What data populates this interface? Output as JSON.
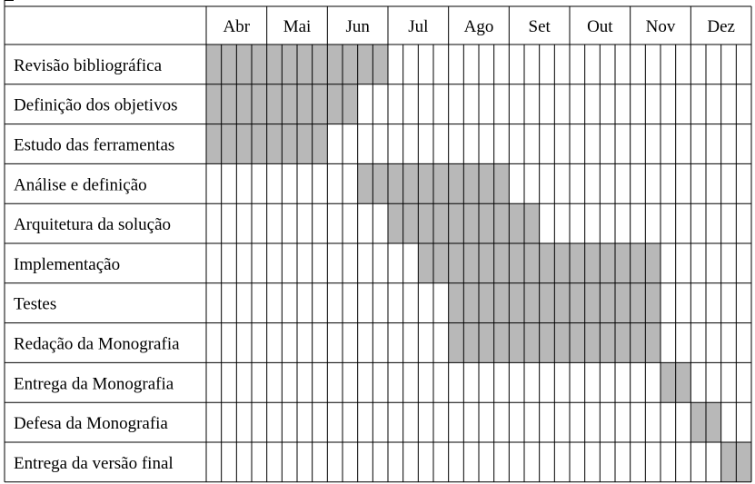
{
  "chart_data": {
    "type": "table",
    "months": [
      "Abr",
      "Mai",
      "Jun",
      "Jul",
      "Ago",
      "Set",
      "Out",
      "Nov",
      "Dez"
    ],
    "weeks_per_month": [
      4,
      4,
      4,
      4,
      4,
      4,
      4,
      4,
      4
    ],
    "tasks": [
      {
        "label": "Revisão bibliográfica",
        "start_week": 1,
        "end_week": 12
      },
      {
        "label": "Definição dos objetivos",
        "start_week": 1,
        "end_week": 10
      },
      {
        "label": "Estudo das ferramentas",
        "start_week": 1,
        "end_week": 8
      },
      {
        "label": "Análise e definição",
        "start_week": 11,
        "end_week": 20
      },
      {
        "label": "Arquitetura da solução",
        "start_week": 13,
        "end_week": 22
      },
      {
        "label": "Implementação",
        "start_week": 15,
        "end_week": 30
      },
      {
        "label": "Testes",
        "start_week": 17,
        "end_week": 30
      },
      {
        "label": "Redação da Monografia",
        "start_week": 17,
        "end_week": 30
      },
      {
        "label": "Entrega da Monografia",
        "start_week": 31,
        "end_week": 32
      },
      {
        "label": "Defesa da Monografia",
        "start_week": 33,
        "end_week": 34
      },
      {
        "label": "Entrega da versão final",
        "start_week": 35,
        "end_week": 36
      }
    ],
    "colors": {
      "filled": "#b8b8b8",
      "empty": "#ffffff",
      "grid": "#000000"
    }
  }
}
